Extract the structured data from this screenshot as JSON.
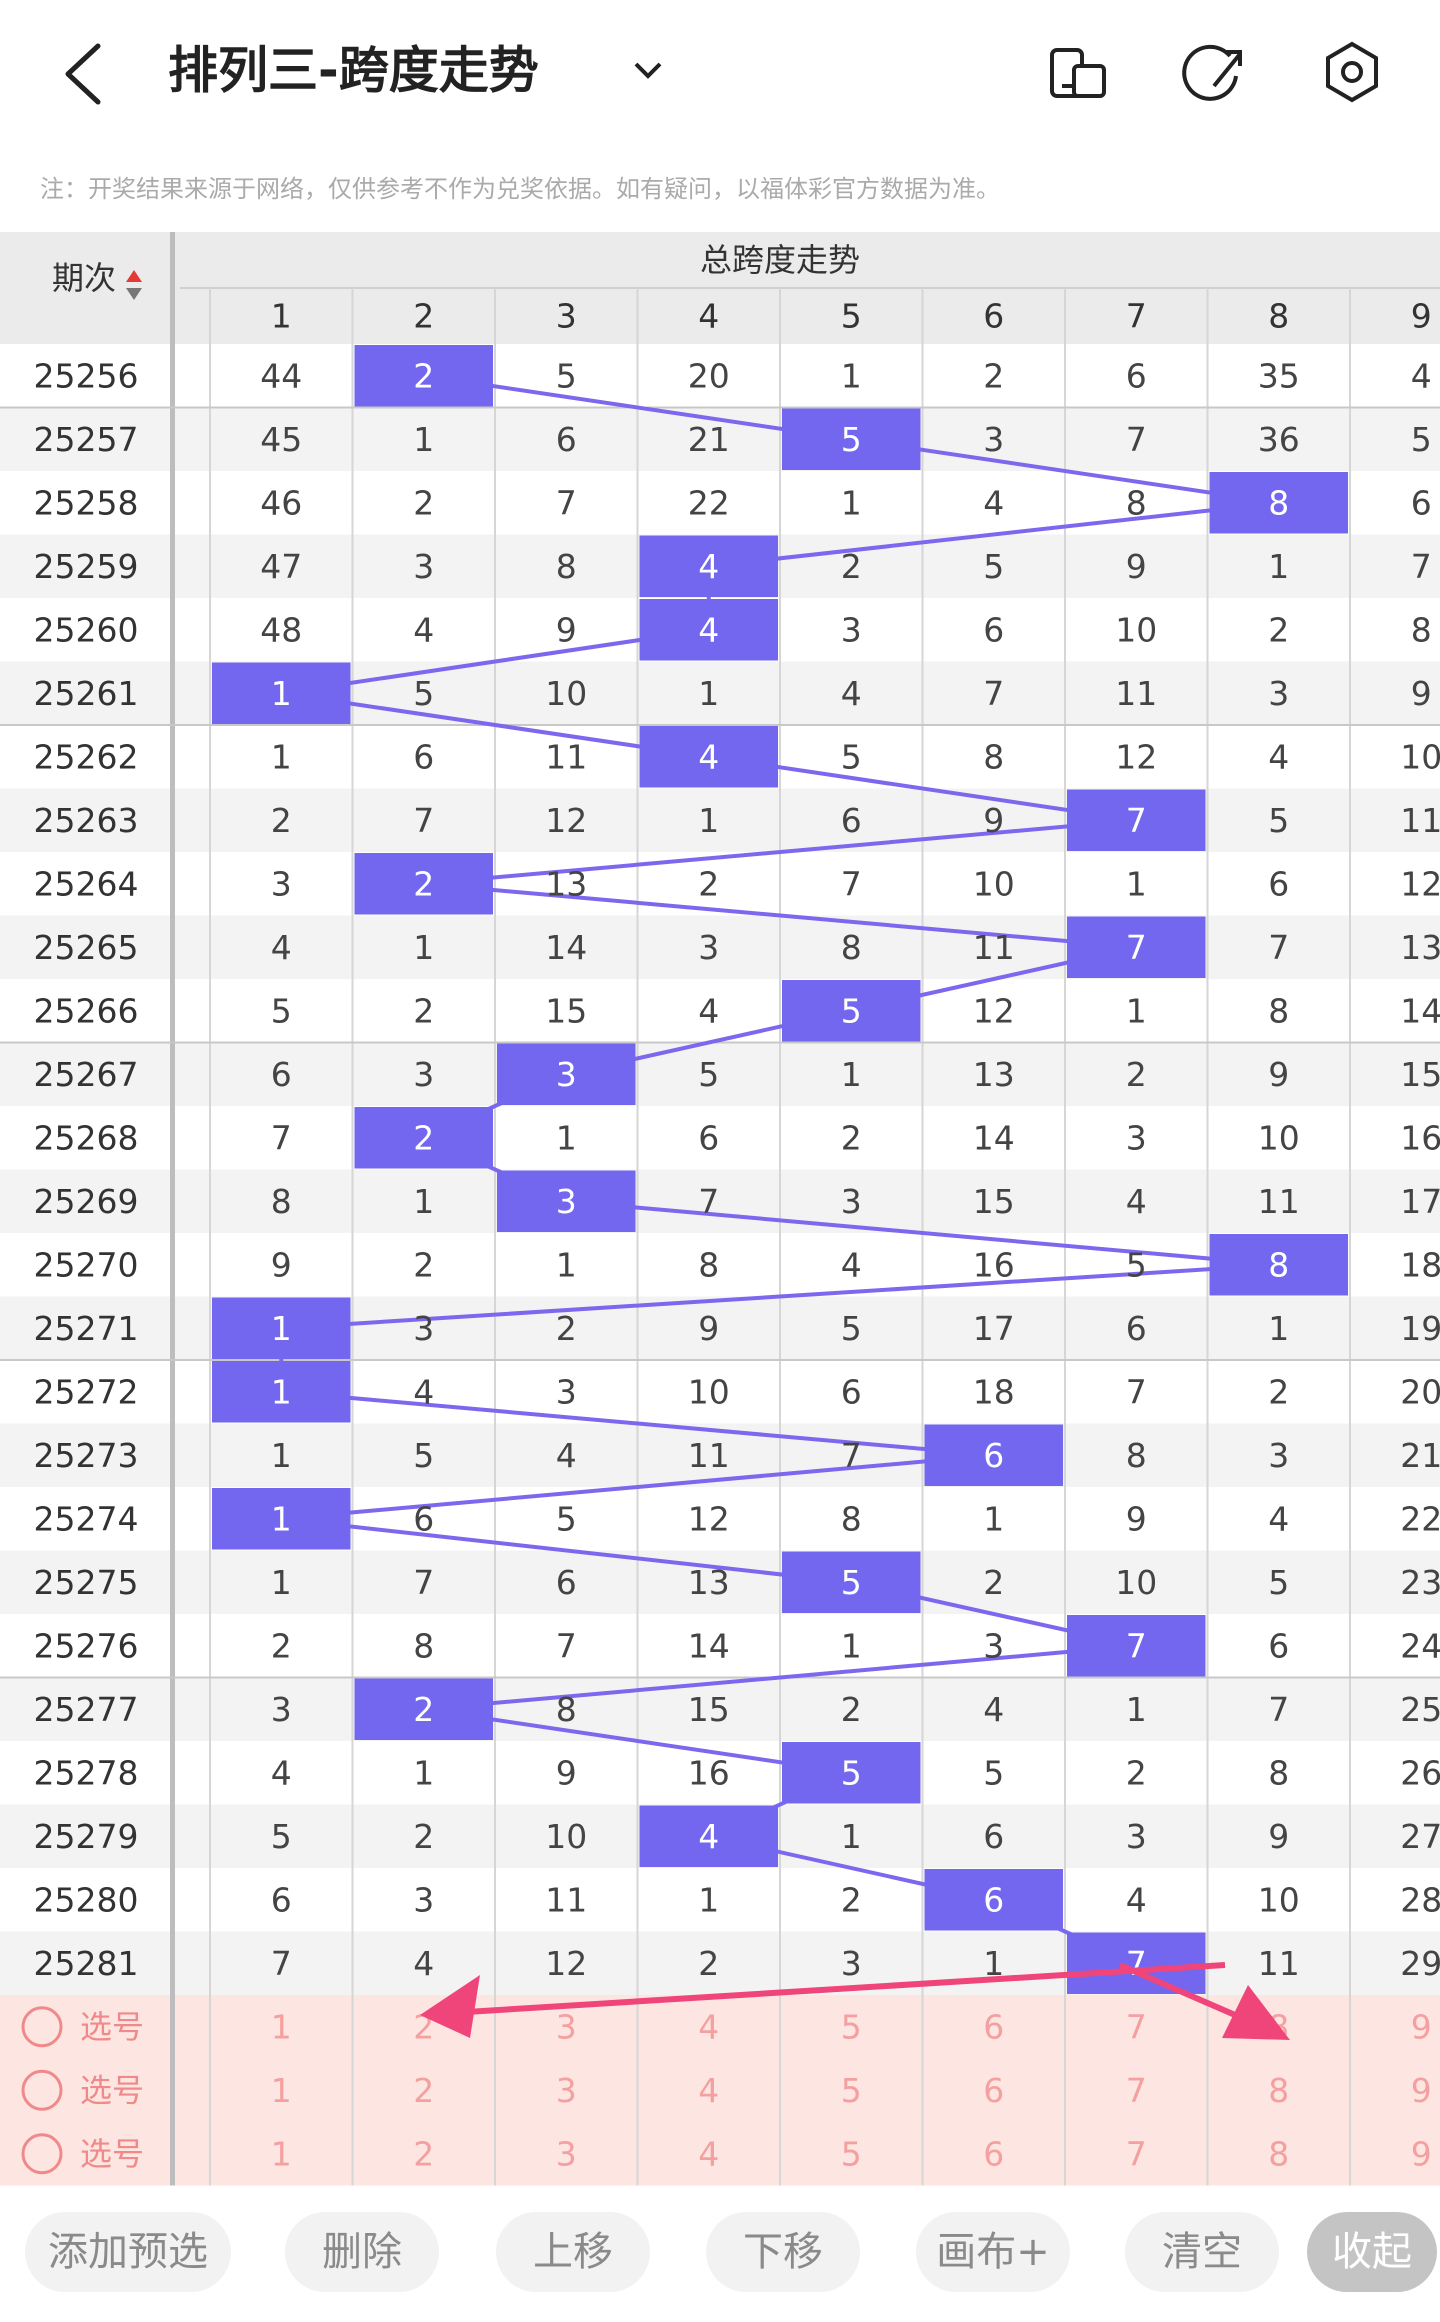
{
  "header": {
    "title": "排列三-跨度走势"
  },
  "note": "注：开奖结果来源于网络，仅供参考不作为兑奖依据。如有疑问，以福体彩官方数据为准。",
  "table": {
    "issue_header": "期次",
    "group_header": "总跨度走势",
    "columns": [
      1,
      2,
      3,
      4,
      5,
      6,
      7,
      8,
      9
    ],
    "rows": [
      {
        "issue": "25256",
        "cells": [
          44,
          2,
          5,
          20,
          1,
          2,
          6,
          35,
          4
        ],
        "span": 2
      },
      {
        "issue": "25257",
        "cells": [
          45,
          1,
          6,
          21,
          5,
          3,
          7,
          36,
          5
        ],
        "span": 5
      },
      {
        "issue": "25258",
        "cells": [
          46,
          2,
          7,
          22,
          1,
          4,
          8,
          8,
          6
        ],
        "span": 8
      },
      {
        "issue": "25259",
        "cells": [
          47,
          3,
          8,
          4,
          2,
          5,
          9,
          1,
          7
        ],
        "span": 4
      },
      {
        "issue": "25260",
        "cells": [
          48,
          4,
          9,
          4,
          3,
          6,
          10,
          2,
          8
        ],
        "span": 4
      },
      {
        "issue": "25261",
        "cells": [
          1,
          5,
          10,
          1,
          4,
          7,
          11,
          3,
          9
        ],
        "span": 1
      },
      {
        "issue": "25262",
        "cells": [
          1,
          6,
          11,
          4,
          5,
          8,
          12,
          4,
          10
        ],
        "span": 4
      },
      {
        "issue": "25263",
        "cells": [
          2,
          7,
          12,
          1,
          6,
          9,
          7,
          5,
          11
        ],
        "span": 7
      },
      {
        "issue": "25264",
        "cells": [
          3,
          2,
          13,
          2,
          7,
          10,
          1,
          6,
          12
        ],
        "span": 2
      },
      {
        "issue": "25265",
        "cells": [
          4,
          1,
          14,
          3,
          8,
          11,
          7,
          7,
          13
        ],
        "span": 7
      },
      {
        "issue": "25266",
        "cells": [
          5,
          2,
          15,
          4,
          5,
          12,
          1,
          8,
          14
        ],
        "span": 5
      },
      {
        "issue": "25267",
        "cells": [
          6,
          3,
          3,
          5,
          1,
          13,
          2,
          9,
          15
        ],
        "span": 3
      },
      {
        "issue": "25268",
        "cells": [
          7,
          2,
          1,
          6,
          2,
          14,
          3,
          10,
          16
        ],
        "span": 2
      },
      {
        "issue": "25269",
        "cells": [
          8,
          1,
          3,
          7,
          3,
          15,
          4,
          11,
          17
        ],
        "span": 3
      },
      {
        "issue": "25270",
        "cells": [
          9,
          2,
          1,
          8,
          4,
          16,
          5,
          8,
          18
        ],
        "span": 8
      },
      {
        "issue": "25271",
        "cells": [
          1,
          3,
          2,
          9,
          5,
          17,
          6,
          1,
          19
        ],
        "span": 1
      },
      {
        "issue": "25272",
        "cells": [
          1,
          4,
          3,
          10,
          6,
          18,
          7,
          2,
          20
        ],
        "span": 1
      },
      {
        "issue": "25273",
        "cells": [
          1,
          5,
          4,
          11,
          7,
          6,
          8,
          3,
          21
        ],
        "span": 6
      },
      {
        "issue": "25274",
        "cells": [
          1,
          6,
          5,
          12,
          8,
          1,
          9,
          4,
          22
        ],
        "span": 1
      },
      {
        "issue": "25275",
        "cells": [
          1,
          7,
          6,
          13,
          5,
          2,
          10,
          5,
          23
        ],
        "span": 5
      },
      {
        "issue": "25276",
        "cells": [
          2,
          8,
          7,
          14,
          1,
          3,
          7,
          6,
          24
        ],
        "span": 7
      },
      {
        "issue": "25277",
        "cells": [
          3,
          2,
          8,
          15,
          2,
          4,
          1,
          7,
          25
        ],
        "span": 2
      },
      {
        "issue": "25278",
        "cells": [
          4,
          1,
          9,
          16,
          5,
          5,
          2,
          8,
          26
        ],
        "span": 5
      },
      {
        "issue": "25279",
        "cells": [
          5,
          2,
          10,
          4,
          1,
          6,
          3,
          9,
          27
        ],
        "span": 4
      },
      {
        "issue": "25280",
        "cells": [
          6,
          3,
          11,
          1,
          2,
          6,
          4,
          10,
          28
        ],
        "span": 6
      },
      {
        "issue": "25281",
        "cells": [
          7,
          4,
          12,
          2,
          3,
          1,
          7,
          11,
          29
        ],
        "span": 7
      }
    ],
    "select_rows": [
      {
        "label": "选号",
        "cells": [
          1,
          2,
          3,
          4,
          5,
          6,
          7,
          8,
          9
        ]
      },
      {
        "label": "选号",
        "cells": [
          1,
          2,
          3,
          4,
          5,
          6,
          7,
          8,
          9
        ]
      },
      {
        "label": "选号",
        "cells": [
          1,
          2,
          3,
          4,
          5,
          6,
          7,
          8,
          9
        ]
      }
    ]
  },
  "buttons": [
    "添加预选",
    "删除",
    "上移",
    "下移",
    "画布+",
    "清空",
    "收起"
  ]
}
